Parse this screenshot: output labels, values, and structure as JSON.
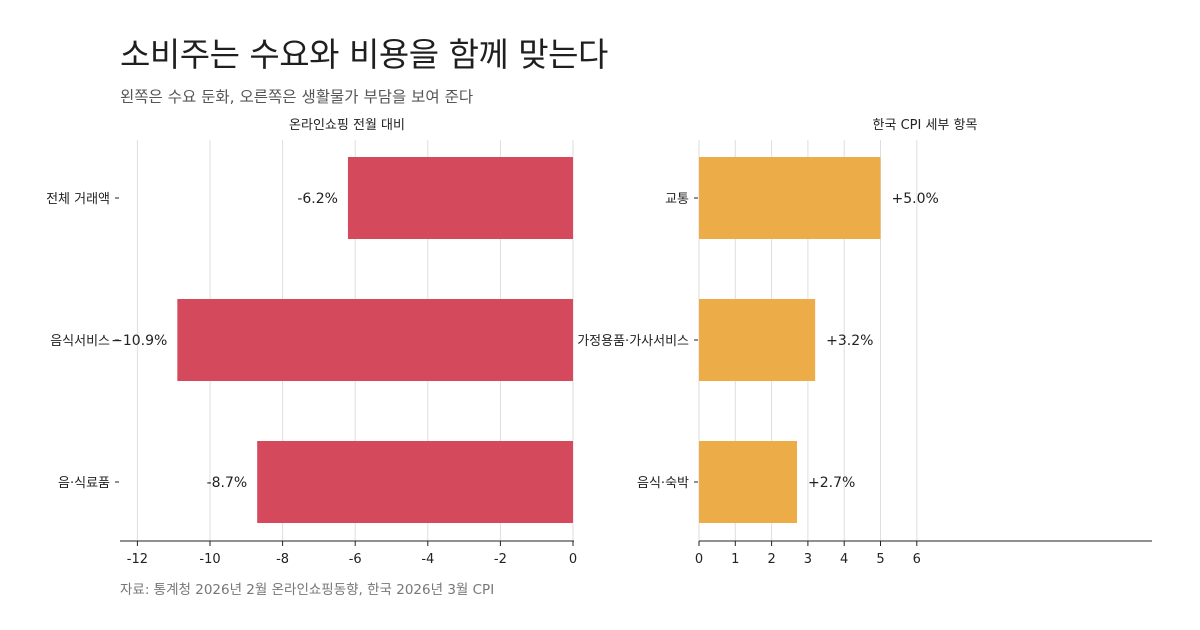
{
  "title": "소비주는 수요와 비용을 함께 맞는다",
  "subtitle": "왼쪽은 수요 둔화, 오른쪽은 생활물가 부담을 보여 준다",
  "source": "자료: 통계청 2026년 2월 온라인쇼핑동향, 한국 2026년 3월 CPI",
  "chart_data": [
    {
      "type": "bar",
      "orientation": "horizontal",
      "title": "온라인쇼핑 전월 대비",
      "categories": [
        "전체 거래액",
        "음식서비스",
        "음·식료품"
      ],
      "values": [
        -6.2,
        -10.9,
        -8.7
      ],
      "value_labels": [
        "-6.2%",
        "−10.9%",
        "-8.7%"
      ],
      "color": "#d4495c",
      "xlim": [
        -12.5,
        0
      ],
      "xticks": [
        -12,
        -10,
        -8,
        -6,
        -4,
        -2,
        0
      ],
      "xtick_labels": [
        "-12",
        "-10",
        "-8",
        "-6",
        "-4",
        "-2",
        "0"
      ],
      "grid": true
    },
    {
      "type": "bar",
      "orientation": "horizontal",
      "title": "한국 CPI 세부 항목",
      "categories": [
        "교통",
        "가정용품·가사서비스",
        "음식·숙박"
      ],
      "values": [
        5.0,
        3.2,
        2.7
      ],
      "value_labels": [
        "+5.0%",
        "+3.2%",
        "+2.7%"
      ],
      "color": "#ecac48",
      "xlim": [
        0,
        6.2
      ],
      "xticks": [
        0,
        1,
        2,
        3,
        4,
        5,
        6
      ],
      "xtick_labels": [
        "0",
        "1",
        "2",
        "3",
        "4",
        "5",
        "6"
      ],
      "grid": true
    }
  ]
}
